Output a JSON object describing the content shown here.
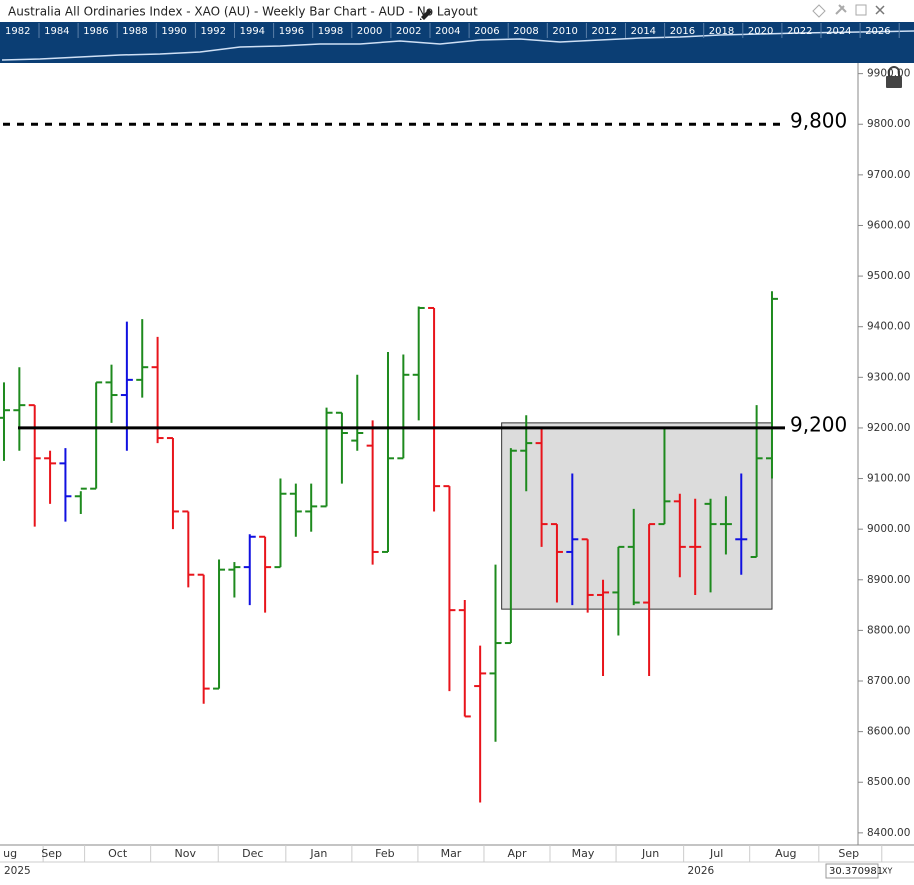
{
  "window": {
    "title": "Australia All Ordinaries Index - XAO (AU) - Weekly Bar Chart - AUD - No Layout",
    "navigator_years": [
      "1982",
      "1984",
      "1986",
      "1988",
      "1990",
      "1992",
      "1994",
      "1996",
      "1998",
      "2000",
      "2002",
      "2004",
      "2006",
      "2008",
      "2010",
      "2012",
      "2014",
      "2016",
      "2018",
      "2020",
      "2022",
      "2024",
      "2026"
    ],
    "cursor_value": "30.370981",
    "cursor_mode": "XY"
  },
  "chart_data": {
    "type": "ohlc",
    "open": [
      9220,
      9235,
      9245,
      9140,
      9130,
      9065,
      9080,
      9290,
      9265,
      9295,
      9320,
      9180,
      9035,
      8910,
      8685,
      8920,
      8925,
      8985,
      8925,
      9070,
      9035,
      9045,
      9230,
      9175,
      9165,
      8955,
      9140,
      9305,
      9437,
      9085,
      8840,
      8690,
      8715,
      8775,
      9155,
      9170,
      9010,
      8955,
      8980,
      8870,
      8875,
      8965,
      8855,
      9010,
      9055,
      8965,
      9050,
      9010,
      8980,
      8945,
      9140
    ],
    "high": [
      9290,
      9320,
      9245,
      9155,
      9160,
      9075,
      9290,
      9325,
      9410,
      9415,
      9380,
      9180,
      9035,
      8910,
      8940,
      8935,
      8990,
      8985,
      9100,
      9090,
      9090,
      9240,
      9230,
      9305,
      9215,
      9350,
      9345,
      9440,
      9437,
      9085,
      8860,
      8770,
      8930,
      9160,
      9225,
      9200,
      9010,
      9110,
      8980,
      8900,
      8965,
      9040,
      9010,
      9200,
      9070,
      9060,
      9060,
      9065,
      9110,
      9245,
      9470
    ],
    "low": [
      9135,
      9155,
      9005,
      9050,
      9015,
      9030,
      9080,
      9210,
      9155,
      9260,
      9170,
      9000,
      8885,
      8655,
      8685,
      8865,
      8850,
      8835,
      8925,
      8985,
      8995,
      9045,
      9090,
      9155,
      8930,
      8955,
      9140,
      9215,
      9035,
      8680,
      8630,
      8460,
      8580,
      8775,
      9075,
      8965,
      8855,
      8850,
      8835,
      8710,
      8790,
      8850,
      8710,
      9010,
      8905,
      8870,
      8875,
      8950,
      8910,
      8945,
      9100
    ],
    "close": [
      9235,
      9245,
      9140,
      9130,
      9065,
      9080,
      9290,
      9265,
      9295,
      9320,
      9180,
      9035,
      8910,
      8685,
      8920,
      8925,
      8985,
      8925,
      9070,
      9035,
      9045,
      9230,
      9190,
      9190,
      8955,
      9140,
      9305,
      9437,
      9085,
      8840,
      8630,
      8715,
      8775,
      9155,
      9170,
      9010,
      8955,
      8980,
      8870,
      8875,
      8965,
      8855,
      9010,
      9055,
      8965,
      8965,
      9010,
      9010,
      8980,
      9140,
      9455
    ],
    "colors": [
      "#1e8a1e",
      "#1e8a1e",
      "#e8141b",
      "#e8141b",
      "#1010e0",
      "#1e8a1e",
      "#1e8a1e",
      "#1e8a1e",
      "#1010e0",
      "#1e8a1e",
      "#e8141b",
      "#e8141b",
      "#e8141b",
      "#e8141b",
      "#1e8a1e",
      "#1e8a1e",
      "#1010e0",
      "#e8141b",
      "#1e8a1e",
      "#1e8a1e",
      "#1e8a1e",
      "#1e8a1e",
      "#1e8a1e",
      "#1e8a1e",
      "#e8141b",
      "#1e8a1e",
      "#1e8a1e",
      "#1e8a1e",
      "#e8141b",
      "#e8141b",
      "#e8141b",
      "#e8141b",
      "#1e8a1e",
      "#1e8a1e",
      "#1e8a1e",
      "#e8141b",
      "#e8141b",
      "#1010e0",
      "#e8141b",
      "#e8141b",
      "#1e8a1e",
      "#1e8a1e",
      "#e8141b",
      "#1e8a1e",
      "#e8141b",
      "#e8141b",
      "#1e8a1e",
      "#1e8a1e",
      "#1010e0",
      "#1e8a1e",
      "#1e8a1e"
    ],
    "xlim": [
      -0.26,
      55.6
    ],
    "xticks": [
      {
        "value": 0.4,
        "label": "ug"
      },
      {
        "value": 3.1,
        "label": "Sep"
      },
      {
        "value": 7.4,
        "label": "Oct"
      },
      {
        "value": 11.8,
        "label": "Nov"
      },
      {
        "value": 16.2,
        "label": "Dec"
      },
      {
        "value": 20.5,
        "label": "Jan"
      },
      {
        "value": 24.8,
        "label": "Feb"
      },
      {
        "value": 29.1,
        "label": "Mar"
      },
      {
        "value": 33.4,
        "label": "Apr"
      },
      {
        "value": 37.7,
        "label": "May"
      },
      {
        "value": 42.1,
        "label": "Jun"
      },
      {
        "value": 46.4,
        "label": "Jul"
      },
      {
        "value": 50.9,
        "label": "Aug"
      },
      {
        "value": 55,
        "label": "Sep"
      }
    ],
    "years": [
      {
        "value": 0,
        "label": "2025"
      },
      {
        "value": 44.5,
        "label": "2026"
      }
    ],
    "ylim": [
      8376,
      9921
    ],
    "yticks": [
      {
        "value": 8400,
        "label": "8400.00"
      },
      {
        "value": 8500,
        "label": "8500.00"
      },
      {
        "value": 8600,
        "label": "8600.00"
      },
      {
        "value": 8700,
        "label": "8700.00"
      },
      {
        "value": 8800,
        "label": "8800.00"
      },
      {
        "value": 8900,
        "label": "8900.00"
      },
      {
        "value": 9000,
        "label": "9000.00"
      },
      {
        "value": 9100,
        "label": "9100.00"
      },
      {
        "value": 9200,
        "label": "9200.00"
      },
      {
        "value": 9300,
        "label": "9300.00"
      },
      {
        "value": 9400,
        "label": "9400.00"
      },
      {
        "value": 9500,
        "label": "9500.00"
      },
      {
        "value": 9600,
        "label": "9600.00"
      },
      {
        "value": 9700,
        "label": "9700.00"
      },
      {
        "value": 9800,
        "label": "9800.00"
      },
      {
        "value": 9900,
        "label": "9900.00"
      }
    ],
    "hlines": [
      {
        "value": 9800,
        "label": "9,800",
        "style": "dashed"
      },
      {
        "value": 9200,
        "label": "9,200",
        "style": "solid"
      }
    ],
    "box": {
      "xlim": [
        32.4,
        50.0
      ],
      "ylim": [
        8842,
        9210
      ]
    }
  }
}
